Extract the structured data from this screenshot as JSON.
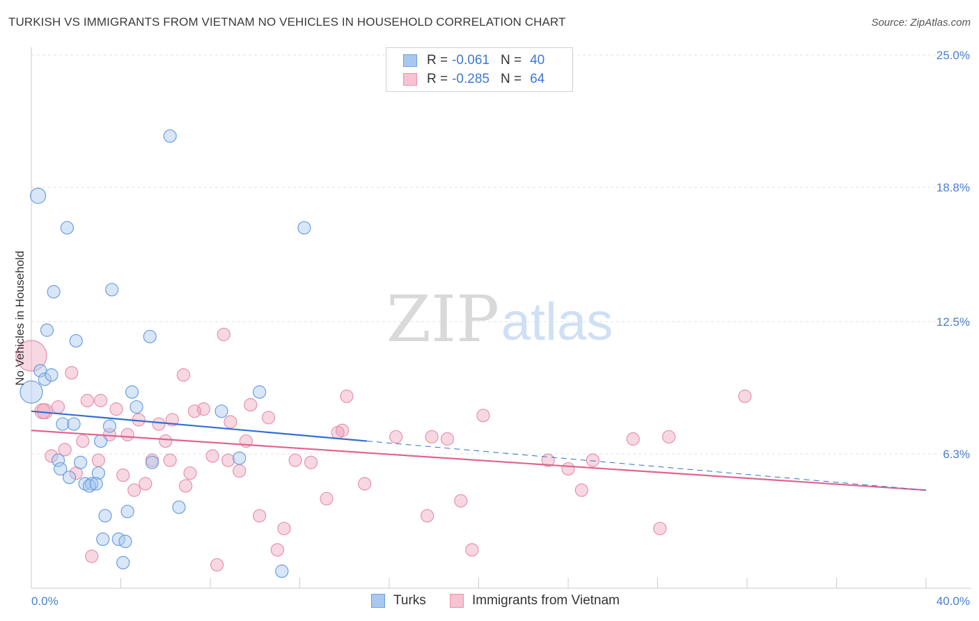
{
  "title": "TURKISH VS IMMIGRANTS FROM VIETNAM NO VEHICLES IN HOUSEHOLD CORRELATION CHART",
  "source": "Source: ZipAtlas.com",
  "watermark": {
    "zip": "ZIP",
    "atlas": "atlas"
  },
  "legend": {
    "r_label": "R =",
    "n_label": "N =",
    "series": [
      {
        "name": "Turks",
        "r": "-0.061",
        "n": "40",
        "fill": "#a9c8f0",
        "stroke": "#6a9ee0"
      },
      {
        "name": "Immigrants from Vietnam",
        "r": "-0.285",
        "n": "64",
        "fill": "#f7c2d1",
        "stroke": "#e890ac"
      }
    ]
  },
  "chart_data": {
    "type": "scatter",
    "ylabel": "No Vehicles in Household",
    "xlim": [
      0,
      40
    ],
    "ylim": [
      0,
      25
    ],
    "x_tick_labels": [
      "0.0%",
      "40.0%"
    ],
    "y_ticks": [
      6.3,
      12.5,
      18.8,
      25.0
    ],
    "y_tick_labels": [
      "6.3%",
      "12.5%",
      "18.8%",
      "25.0%"
    ],
    "grid": true,
    "colors": {
      "turks": "#6a9ee0",
      "turks_line": "#2f6fd0",
      "vietnam": "#e890ac",
      "vietnam_line": "#e0648e"
    },
    "series": [
      {
        "name": "Turks",
        "trend": {
          "x": [
            0,
            15
          ],
          "y": [
            8.3,
            6.9
          ],
          "dashed_to": 40,
          "dashed_end_y": 4.6
        },
        "points": [
          [
            0.0,
            9.2
          ],
          [
            0.3,
            18.4
          ],
          [
            1.6,
            16.9
          ],
          [
            6.2,
            21.2
          ],
          [
            12.2,
            16.9
          ],
          [
            1.0,
            13.9
          ],
          [
            3.6,
            14.0
          ],
          [
            0.7,
            12.1
          ],
          [
            2.0,
            11.6
          ],
          [
            5.3,
            11.8
          ],
          [
            0.4,
            10.2
          ],
          [
            0.6,
            9.8
          ],
          [
            0.9,
            10.0
          ],
          [
            4.5,
            9.2
          ],
          [
            10.2,
            9.2
          ],
          [
            4.7,
            8.5
          ],
          [
            8.5,
            8.3
          ],
          [
            1.4,
            7.7
          ],
          [
            1.9,
            7.7
          ],
          [
            3.5,
            7.6
          ],
          [
            3.1,
            6.9
          ],
          [
            1.2,
            6.0
          ],
          [
            2.2,
            5.9
          ],
          [
            5.4,
            5.9
          ],
          [
            9.3,
            6.1
          ],
          [
            1.3,
            5.6
          ],
          [
            3.0,
            5.4
          ],
          [
            1.7,
            5.2
          ],
          [
            2.4,
            4.9
          ],
          [
            2.7,
            4.9
          ],
          [
            2.6,
            4.8
          ],
          [
            2.9,
            4.9
          ],
          [
            6.6,
            3.8
          ],
          [
            3.3,
            3.4
          ],
          [
            4.3,
            3.6
          ],
          [
            3.2,
            2.3
          ],
          [
            3.9,
            2.3
          ],
          [
            4.2,
            2.2
          ],
          [
            4.1,
            1.2
          ],
          [
            11.2,
            0.8
          ]
        ]
      },
      {
        "name": "Immigrants from Vietnam",
        "trend": {
          "x": [
            0,
            40
          ],
          "y": [
            7.4,
            4.6
          ]
        },
        "points": [
          [
            0.0,
            10.9
          ],
          [
            0.5,
            8.3
          ],
          [
            0.6,
            8.3
          ],
          [
            1.2,
            8.5
          ],
          [
            1.8,
            10.1
          ],
          [
            2.5,
            8.8
          ],
          [
            3.1,
            8.8
          ],
          [
            3.8,
            8.4
          ],
          [
            6.8,
            10.0
          ],
          [
            8.6,
            11.9
          ],
          [
            14.1,
            9.0
          ],
          [
            31.9,
            9.0
          ],
          [
            20.2,
            8.1
          ],
          [
            7.3,
            8.3
          ],
          [
            7.7,
            8.4
          ],
          [
            9.8,
            8.6
          ],
          [
            10.6,
            8.0
          ],
          [
            6.3,
            7.9
          ],
          [
            4.8,
            7.9
          ],
          [
            5.7,
            7.7
          ],
          [
            8.9,
            7.8
          ],
          [
            13.7,
            7.3
          ],
          [
            13.9,
            7.4
          ],
          [
            16.3,
            7.1
          ],
          [
            17.9,
            7.1
          ],
          [
            18.6,
            7.0
          ],
          [
            26.9,
            7.0
          ],
          [
            28.5,
            7.1
          ],
          [
            3.5,
            7.2
          ],
          [
            4.3,
            7.2
          ],
          [
            2.3,
            6.9
          ],
          [
            6.0,
            6.9
          ],
          [
            9.6,
            6.9
          ],
          [
            1.5,
            6.5
          ],
          [
            0.9,
            6.2
          ],
          [
            3.0,
            6.0
          ],
          [
            5.4,
            6.0
          ],
          [
            6.2,
            6.0
          ],
          [
            8.1,
            6.2
          ],
          [
            8.8,
            6.0
          ],
          [
            11.8,
            6.0
          ],
          [
            12.5,
            5.9
          ],
          [
            23.1,
            6.0
          ],
          [
            25.1,
            6.0
          ],
          [
            24.0,
            5.6
          ],
          [
            2.0,
            5.4
          ],
          [
            7.1,
            5.4
          ],
          [
            9.3,
            5.5
          ],
          [
            4.1,
            5.3
          ],
          [
            5.1,
            4.9
          ],
          [
            6.9,
            4.8
          ],
          [
            14.9,
            4.9
          ],
          [
            4.6,
            4.6
          ],
          [
            24.6,
            4.6
          ],
          [
            13.2,
            4.2
          ],
          [
            19.2,
            4.1
          ],
          [
            10.2,
            3.4
          ],
          [
            17.7,
            3.4
          ],
          [
            11.3,
            2.8
          ],
          [
            28.1,
            2.8
          ],
          [
            11.0,
            1.8
          ],
          [
            19.7,
            1.8
          ],
          [
            8.3,
            1.1
          ],
          [
            2.7,
            1.5
          ]
        ]
      }
    ]
  }
}
